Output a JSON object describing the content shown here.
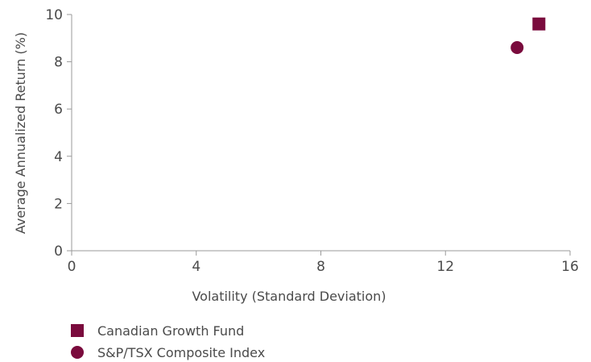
{
  "chart_data": {
    "type": "scatter",
    "title": "",
    "xlabel": "Volatility (Standard Deviation)",
    "ylabel": "Average Annualized Return (%)",
    "xlim": [
      0,
      16
    ],
    "ylim": [
      0,
      10
    ],
    "x_ticks": [
      0,
      4,
      8,
      12,
      16
    ],
    "y_ticks": [
      0,
      2,
      4,
      6,
      8,
      10
    ],
    "x_tick_labels": [
      "0",
      "4",
      "8",
      "12",
      "16"
    ],
    "y_tick_labels": [
      "0",
      "2",
      "4",
      "6",
      "8",
      "10"
    ],
    "grid": false,
    "legend_position": "bottom-left",
    "series": [
      {
        "name": "Canadian Growth Fund",
        "marker": "square",
        "color": "#7a0b3d",
        "points": [
          {
            "x": 15.0,
            "y": 9.6
          }
        ]
      },
      {
        "name": "S&P/TSX Composite Index",
        "marker": "circle",
        "color": "#7a0b3d",
        "points": [
          {
            "x": 14.3,
            "y": 8.6
          }
        ]
      }
    ]
  }
}
